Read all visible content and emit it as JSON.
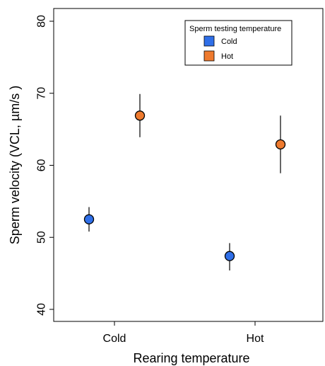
{
  "chart_data": {
    "type": "scatter",
    "title": "",
    "xlabel": "Rearing temperature",
    "ylabel": "Sperm velocity (VCL, µm/s )",
    "categories": [
      "Cold",
      "Hot"
    ],
    "ylim": [
      40,
      80
    ],
    "yticks": [
      "40",
      "50",
      "60",
      "70",
      "80"
    ],
    "grid": false,
    "legend_title": "Sperm testing temperature",
    "legend_position": "top-right",
    "series": [
      {
        "name": "Cold",
        "color": "#2f6fe8",
        "values": [
          52.5,
          47.4
        ],
        "error_low": [
          50.8,
          45.4
        ],
        "error_high": [
          54.2,
          49.2
        ]
      },
      {
        "name": "Hot",
        "color": "#ee7a2e",
        "values": [
          66.9,
          62.9
        ],
        "error_low": [
          63.9,
          58.9
        ],
        "error_high": [
          69.9,
          66.9
        ]
      }
    ]
  }
}
